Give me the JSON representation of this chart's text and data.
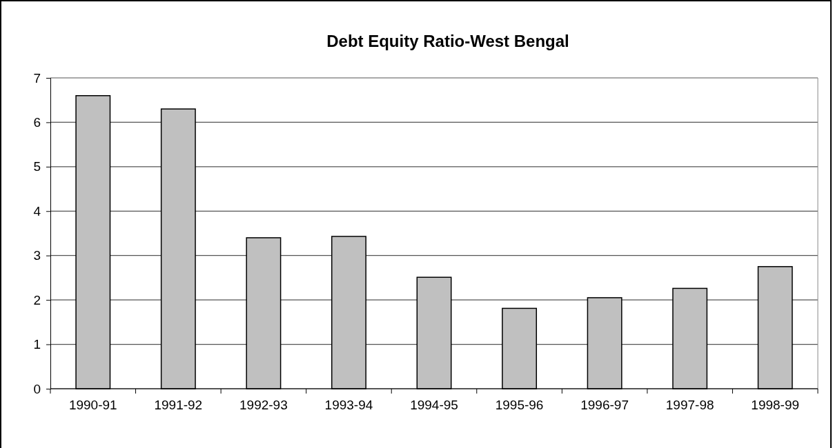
{
  "chart_data": {
    "type": "bar",
    "title": "Debt Equity Ratio-West Bengal",
    "categories": [
      "1990-91",
      "1991-92",
      "1992-93",
      "1993-94",
      "1994-95",
      "1995-96",
      "1996-97",
      "1997-98",
      "1998-99"
    ],
    "values": [
      6.6,
      6.3,
      3.4,
      3.43,
      2.51,
      1.81,
      2.05,
      2.26,
      2.75
    ],
    "color": "#c0c0c0",
    "ylim": [
      0,
      7
    ],
    "yticks": [
      0,
      1,
      2,
      3,
      4,
      5,
      6,
      7
    ],
    "grid": "y"
  }
}
